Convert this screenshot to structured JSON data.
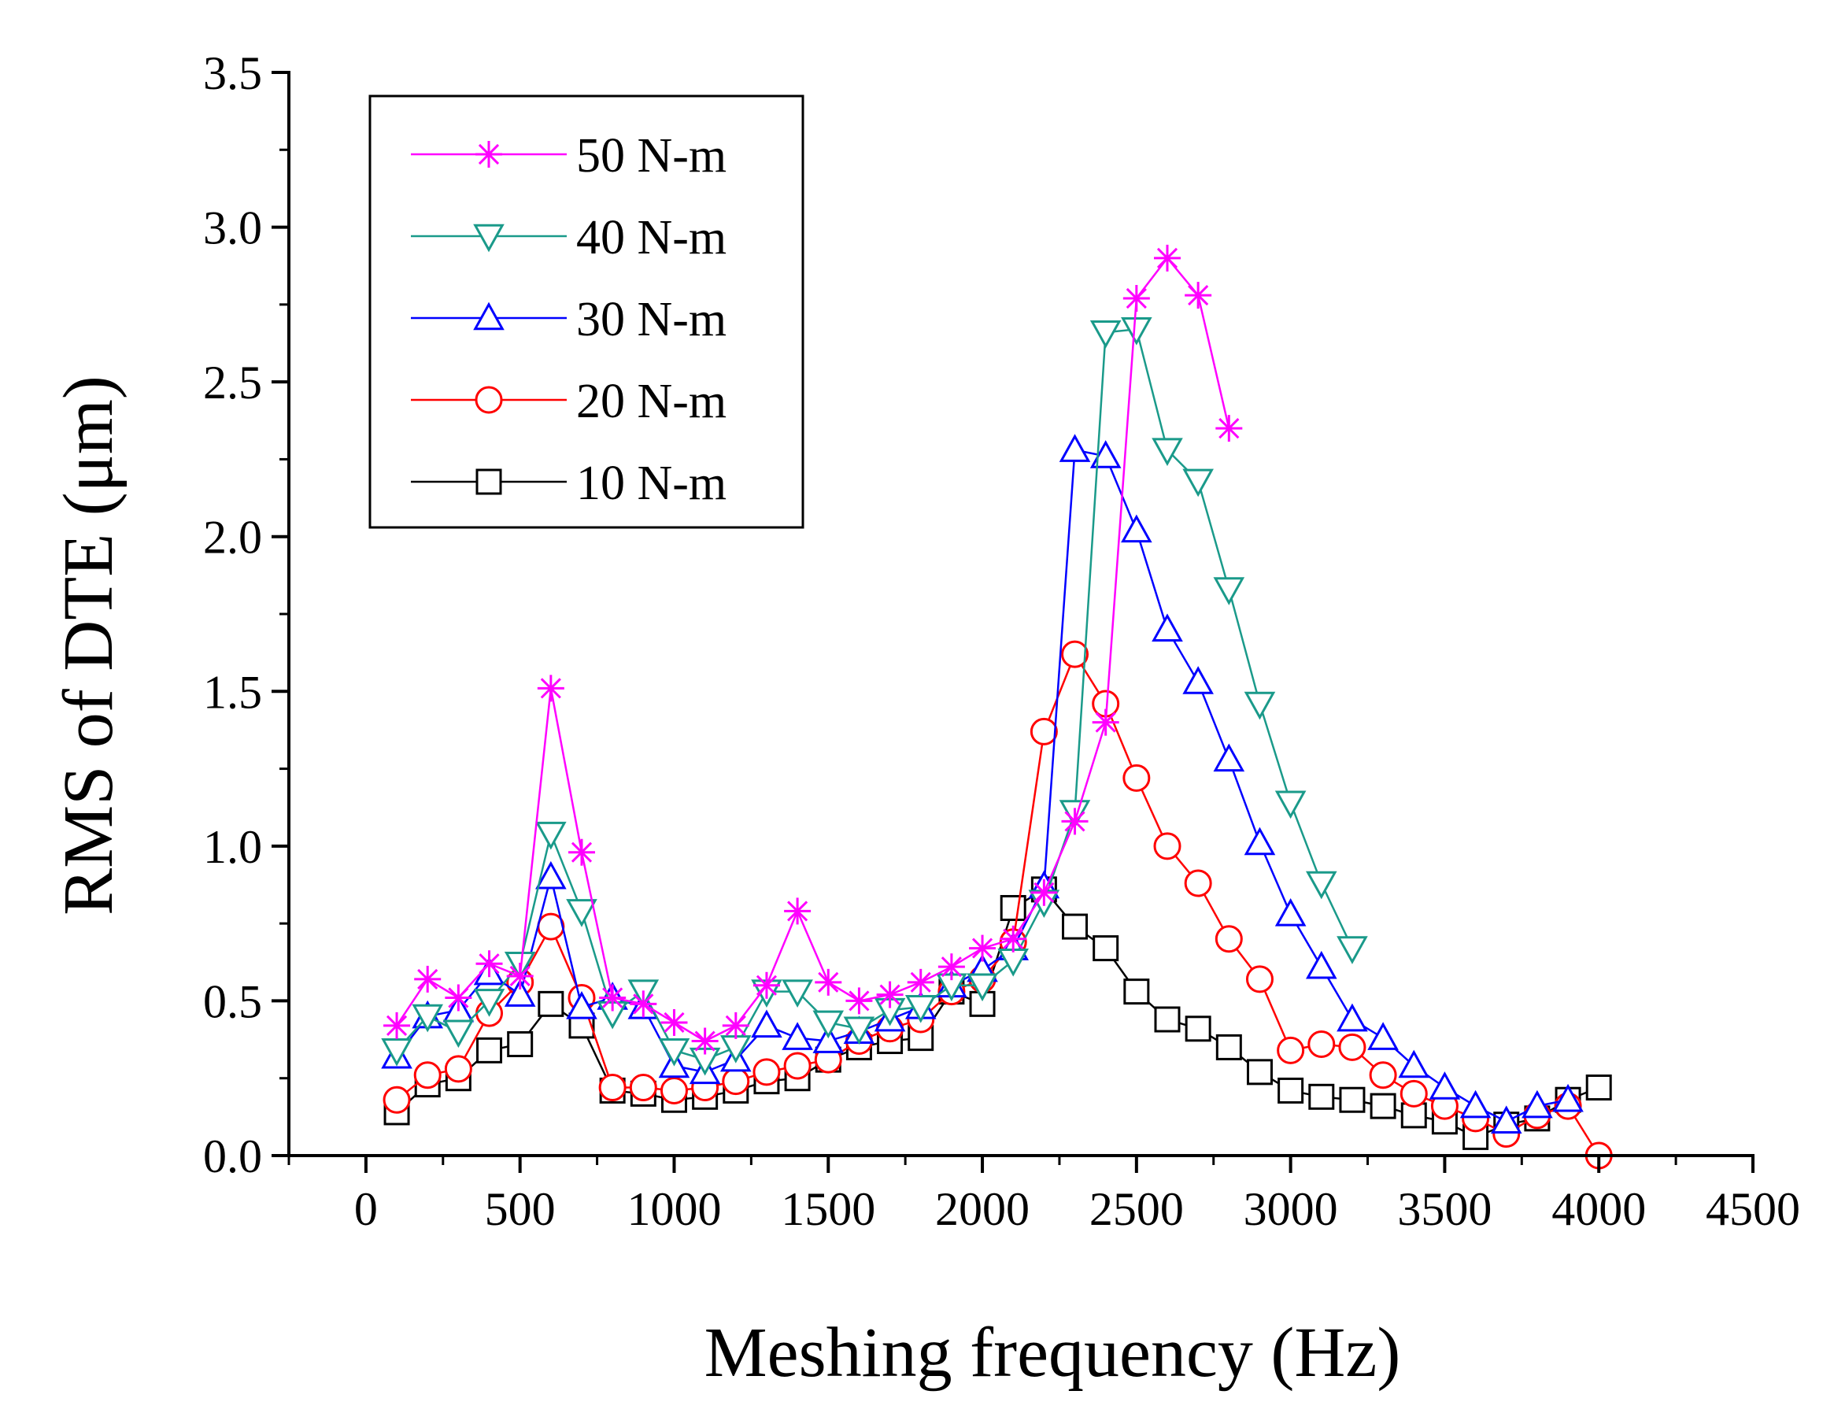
{
  "chart_data": {
    "type": "line",
    "title": "",
    "xlabel": "Meshing frequency (Hz)",
    "ylabel": "RMS of DTE (μm)",
    "xlim": [
      -250,
      4500
    ],
    "ylim": [
      0,
      3.5
    ],
    "xticks": [
      0,
      500,
      1000,
      1500,
      2000,
      2500,
      3000,
      3500,
      4000,
      4500
    ],
    "yticks": [
      0.0,
      0.5,
      1.0,
      1.5,
      2.0,
      2.5,
      3.0,
      3.5
    ],
    "xtick_labels": [
      "0",
      "500",
      "1000",
      "1500",
      "2000",
      "2500",
      "3000",
      "3500",
      "4000",
      "4500"
    ],
    "ytick_labels": [
      "0.0",
      "0.5",
      "1.0",
      "1.5",
      "2.0",
      "2.5",
      "3.0",
      "3.5"
    ],
    "grid": false,
    "legend_position": "top-left",
    "series": [
      {
        "name": "50 N-m",
        "color": "#ff00ff",
        "marker": "asterisk",
        "x": [
          100,
          200,
          300,
          400,
          500,
          600,
          700,
          800,
          900,
          1000,
          1100,
          1200,
          1300,
          1400,
          1500,
          1600,
          1700,
          1800,
          1900,
          2000,
          2100,
          2200,
          2300,
          2400,
          2500,
          2600,
          2700,
          2800
        ],
        "y": [
          0.42,
          0.57,
          0.51,
          0.62,
          0.58,
          1.51,
          0.98,
          0.51,
          0.49,
          0.43,
          0.37,
          0.42,
          0.55,
          0.79,
          0.56,
          0.5,
          0.52,
          0.56,
          0.61,
          0.67,
          0.7,
          0.85,
          1.08,
          1.4,
          2.77,
          2.9,
          2.78,
          2.35
        ]
      },
      {
        "name": "40 N-m",
        "color": "#1a9a8a",
        "marker": "triangle-down",
        "x": [
          100,
          200,
          300,
          400,
          500,
          600,
          700,
          800,
          900,
          1000,
          1100,
          1200,
          1300,
          1400,
          1500,
          1600,
          1700,
          1800,
          1900,
          2000,
          2100,
          2200,
          2300,
          2400,
          2500,
          2600,
          2700,
          2800,
          2900,
          3000,
          3100,
          3200
        ],
        "y": [
          0.34,
          0.45,
          0.4,
          0.5,
          0.62,
          1.04,
          0.79,
          0.46,
          0.53,
          0.34,
          0.31,
          0.35,
          0.53,
          0.53,
          0.43,
          0.41,
          0.47,
          0.48,
          0.55,
          0.55,
          0.63,
          0.82,
          1.11,
          2.66,
          2.67,
          2.28,
          2.18,
          1.83,
          1.46,
          1.14,
          0.88,
          0.67
        ]
      },
      {
        "name": "30 N-m",
        "color": "#0000ff",
        "marker": "triangle-up",
        "x": [
          100,
          200,
          300,
          400,
          500,
          600,
          700,
          800,
          900,
          1000,
          1100,
          1200,
          1300,
          1400,
          1500,
          1600,
          1700,
          1800,
          1900,
          2000,
          2100,
          2200,
          2300,
          2400,
          2500,
          2600,
          2700,
          2800,
          2900,
          3000,
          3100,
          3200,
          3300,
          3400,
          3500,
          3600,
          3700,
          3800,
          3900
        ],
        "y": [
          0.32,
          0.45,
          0.47,
          0.59,
          0.52,
          0.9,
          0.48,
          0.51,
          0.48,
          0.29,
          0.27,
          0.31,
          0.42,
          0.38,
          0.37,
          0.4,
          0.44,
          0.48,
          0.55,
          0.6,
          0.67,
          0.87,
          2.28,
          2.26,
          2.02,
          1.7,
          1.53,
          1.28,
          1.01,
          0.78,
          0.61,
          0.44,
          0.38,
          0.29,
          0.22,
          0.16,
          0.11,
          0.16,
          0.18
        ]
      },
      {
        "name": "20 N-m",
        "color": "#ff0000",
        "marker": "circle",
        "x": [
          100,
          200,
          300,
          400,
          500,
          600,
          700,
          800,
          900,
          1000,
          1100,
          1200,
          1300,
          1400,
          1500,
          1600,
          1700,
          1800,
          1900,
          2000,
          2100,
          2200,
          2300,
          2400,
          2500,
          2600,
          2700,
          2800,
          2900,
          3000,
          3100,
          3200,
          3300,
          3400,
          3500,
          3600,
          3700,
          3800,
          3900,
          4000
        ],
        "y": [
          0.18,
          0.26,
          0.28,
          0.46,
          0.56,
          0.74,
          0.51,
          0.22,
          0.22,
          0.21,
          0.22,
          0.24,
          0.27,
          0.29,
          0.31,
          0.37,
          0.41,
          0.44,
          0.53,
          0.57,
          0.69,
          1.37,
          1.62,
          1.46,
          1.22,
          1.0,
          0.88,
          0.7,
          0.57,
          0.34,
          0.36,
          0.35,
          0.26,
          0.2,
          0.16,
          0.12,
          0.07,
          0.13,
          0.16,
          0.0
        ]
      },
      {
        "name": "10 N-m",
        "color": "#000000",
        "marker": "square",
        "x": [
          100,
          200,
          300,
          400,
          500,
          600,
          700,
          800,
          900,
          1000,
          1100,
          1200,
          1300,
          1400,
          1500,
          1600,
          1700,
          1800,
          1900,
          2000,
          2100,
          2200,
          2300,
          2400,
          2500,
          2600,
          2700,
          2800,
          2900,
          3000,
          3100,
          3200,
          3300,
          3400,
          3500,
          3600,
          3700,
          3800,
          3900,
          4000
        ],
        "y": [
          0.14,
          0.23,
          0.25,
          0.34,
          0.36,
          0.49,
          0.42,
          0.21,
          0.2,
          0.18,
          0.19,
          0.21,
          0.24,
          0.25,
          0.31,
          0.35,
          0.37,
          0.38,
          0.53,
          0.49,
          0.8,
          0.86,
          0.74,
          0.67,
          0.53,
          0.44,
          0.41,
          0.35,
          0.27,
          0.21,
          0.19,
          0.18,
          0.16,
          0.13,
          0.11,
          0.06,
          0.1,
          0.12,
          0.18,
          0.22
        ]
      }
    ]
  }
}
